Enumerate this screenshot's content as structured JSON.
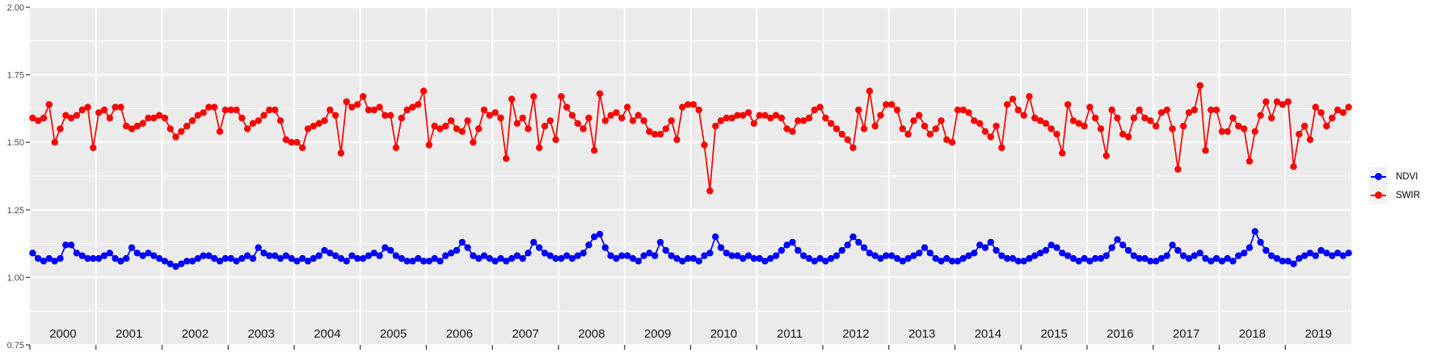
{
  "figure": {
    "background": "#FFFFFF",
    "panel_background": "#EBEBEB",
    "grid_color": "#FFFFFF",
    "tick_color": "#333333"
  },
  "legend": {
    "key_background": "#F2F2F2",
    "items": [
      {
        "label": "NDVI",
        "color": "#0000FF"
      },
      {
        "label": "SWIR",
        "color": "#FF0000"
      }
    ]
  },
  "chart_data": {
    "type": "line",
    "title": "",
    "xlabel": "",
    "ylabel": "",
    "legend_position": "right",
    "grid": "horizontal major+minor, vertical major at year boundaries",
    "x_range_years": [
      2000,
      2020
    ],
    "y_range": [
      0.75,
      2.0
    ],
    "y_major_ticks": [
      0.75,
      1.0,
      1.25,
      1.5,
      1.75,
      2.0
    ],
    "y_tick_labels": [
      "0.75",
      "1.00",
      "1.25",
      "1.50",
      "1.75",
      "2.00"
    ],
    "y_minor_ticks": [
      0.875,
      1.125,
      1.375,
      1.625,
      1.875
    ],
    "x_tick_years": [
      2000,
      2001,
      2002,
      2003,
      2004,
      2005,
      2006,
      2007,
      2008,
      2009,
      2010,
      2011,
      2012,
      2013,
      2014,
      2015,
      2016,
      2017,
      2018,
      2019
    ],
    "points_per_year": 12,
    "series": [
      {
        "name": "NDVI",
        "color": "#0000FF",
        "monthly_values_by_year": {
          "2000": [
            1.09,
            1.07,
            1.06,
            1.07,
            1.06,
            1.07,
            1.12,
            1.12,
            1.09,
            1.08,
            1.07,
            1.07
          ],
          "2001": [
            1.07,
            1.08,
            1.09,
            1.07,
            1.06,
            1.07,
            1.11,
            1.09,
            1.08,
            1.09,
            1.08,
            1.07
          ],
          "2002": [
            1.06,
            1.05,
            1.04,
            1.05,
            1.06,
            1.06,
            1.07,
            1.08,
            1.08,
            1.07,
            1.06,
            1.07
          ],
          "2003": [
            1.07,
            1.06,
            1.07,
            1.08,
            1.07,
            1.11,
            1.09,
            1.08,
            1.08,
            1.07,
            1.08,
            1.07
          ],
          "2004": [
            1.06,
            1.07,
            1.06,
            1.07,
            1.08,
            1.1,
            1.09,
            1.08,
            1.07,
            1.06,
            1.08,
            1.07
          ],
          "2005": [
            1.07,
            1.08,
            1.09,
            1.08,
            1.11,
            1.1,
            1.08,
            1.07,
            1.06,
            1.06,
            1.07,
            1.06
          ],
          "2006": [
            1.06,
            1.07,
            1.06,
            1.08,
            1.09,
            1.1,
            1.13,
            1.11,
            1.08,
            1.07,
            1.08,
            1.07
          ],
          "2007": [
            1.06,
            1.07,
            1.06,
            1.07,
            1.08,
            1.07,
            1.09,
            1.13,
            1.11,
            1.09,
            1.08,
            1.07
          ],
          "2008": [
            1.07,
            1.08,
            1.07,
            1.08,
            1.09,
            1.12,
            1.15,
            1.16,
            1.11,
            1.08,
            1.07,
            1.08
          ],
          "2009": [
            1.08,
            1.07,
            1.06,
            1.08,
            1.09,
            1.08,
            1.13,
            1.1,
            1.08,
            1.07,
            1.06,
            1.07
          ],
          "2010": [
            1.07,
            1.06,
            1.08,
            1.09,
            1.15,
            1.11,
            1.09,
            1.08,
            1.08,
            1.07,
            1.08,
            1.07
          ],
          "2011": [
            1.07,
            1.06,
            1.07,
            1.08,
            1.1,
            1.12,
            1.13,
            1.1,
            1.08,
            1.07,
            1.06,
            1.07
          ],
          "2012": [
            1.06,
            1.07,
            1.08,
            1.1,
            1.12,
            1.15,
            1.13,
            1.11,
            1.09,
            1.08,
            1.07,
            1.08
          ],
          "2013": [
            1.08,
            1.07,
            1.06,
            1.07,
            1.08,
            1.09,
            1.11,
            1.09,
            1.07,
            1.06,
            1.07,
            1.06
          ],
          "2014": [
            1.06,
            1.07,
            1.08,
            1.09,
            1.12,
            1.11,
            1.13,
            1.1,
            1.08,
            1.07,
            1.07,
            1.06
          ],
          "2015": [
            1.06,
            1.07,
            1.08,
            1.09,
            1.1,
            1.12,
            1.11,
            1.09,
            1.08,
            1.07,
            1.06,
            1.07
          ],
          "2016": [
            1.06,
            1.07,
            1.07,
            1.08,
            1.11,
            1.14,
            1.12,
            1.1,
            1.08,
            1.07,
            1.07,
            1.06
          ],
          "2017": [
            1.06,
            1.07,
            1.08,
            1.12,
            1.1,
            1.08,
            1.07,
            1.08,
            1.09,
            1.07,
            1.06,
            1.07
          ],
          "2018": [
            1.06,
            1.07,
            1.06,
            1.08,
            1.09,
            1.11,
            1.17,
            1.13,
            1.1,
            1.08,
            1.07,
            1.06
          ],
          "2019": [
            1.06,
            1.05,
            1.07,
            1.08,
            1.09,
            1.08,
            1.1,
            1.09,
            1.08,
            1.09,
            1.08,
            1.09
          ]
        }
      },
      {
        "name": "SWIR",
        "color": "#FF0000",
        "monthly_values_by_year": {
          "2000": [
            1.59,
            1.58,
            1.59,
            1.64,
            1.5,
            1.55,
            1.6,
            1.59,
            1.6,
            1.62,
            1.63,
            1.48
          ],
          "2001": [
            1.61,
            1.62,
            1.59,
            1.63,
            1.63,
            1.56,
            1.55,
            1.56,
            1.57,
            1.59,
            1.59,
            1.6
          ],
          "2002": [
            1.59,
            1.55,
            1.52,
            1.54,
            1.56,
            1.58,
            1.6,
            1.61,
            1.63,
            1.63,
            1.54,
            1.62
          ],
          "2003": [
            1.62,
            1.62,
            1.59,
            1.55,
            1.57,
            1.58,
            1.6,
            1.62,
            1.62,
            1.58,
            1.51,
            1.5
          ],
          "2004": [
            1.5,
            1.48,
            1.55,
            1.56,
            1.57,
            1.58,
            1.62,
            1.6,
            1.46,
            1.65,
            1.63,
            1.64
          ],
          "2005": [
            1.67,
            1.62,
            1.62,
            1.63,
            1.6,
            1.6,
            1.48,
            1.59,
            1.62,
            1.63,
            1.64,
            1.69
          ],
          "2006": [
            1.49,
            1.56,
            1.55,
            1.56,
            1.58,
            1.55,
            1.54,
            1.58,
            1.5,
            1.55,
            1.62,
            1.6
          ],
          "2007": [
            1.61,
            1.59,
            1.44,
            1.66,
            1.57,
            1.59,
            1.55,
            1.67,
            1.48,
            1.56,
            1.58,
            1.51
          ],
          "2008": [
            1.67,
            1.63,
            1.6,
            1.57,
            1.55,
            1.59,
            1.47,
            1.68,
            1.58,
            1.6,
            1.61,
            1.59
          ],
          "2009": [
            1.63,
            1.58,
            1.6,
            1.58,
            1.54,
            1.53,
            1.53,
            1.55,
            1.58,
            1.51,
            1.63,
            1.64
          ],
          "2010": [
            1.64,
            1.62,
            1.49,
            1.32,
            1.56,
            1.58,
            1.59,
            1.59,
            1.6,
            1.6,
            1.61,
            1.57
          ],
          "2011": [
            1.6,
            1.6,
            1.59,
            1.6,
            1.59,
            1.55,
            1.54,
            1.58,
            1.58,
            1.59,
            1.62,
            1.63
          ],
          "2012": [
            1.59,
            1.57,
            1.55,
            1.53,
            1.51,
            1.48,
            1.62,
            1.55,
            1.69,
            1.56,
            1.6,
            1.64
          ],
          "2013": [
            1.64,
            1.62,
            1.55,
            1.53,
            1.58,
            1.6,
            1.56,
            1.53,
            1.55,
            1.58,
            1.51,
            1.5
          ],
          "2014": [
            1.62,
            1.62,
            1.61,
            1.58,
            1.57,
            1.54,
            1.52,
            1.56,
            1.48,
            1.64,
            1.66,
            1.62
          ],
          "2015": [
            1.6,
            1.67,
            1.59,
            1.58,
            1.57,
            1.55,
            1.53,
            1.46,
            1.64,
            1.58,
            1.57,
            1.56
          ],
          "2016": [
            1.63,
            1.59,
            1.55,
            1.45,
            1.62,
            1.59,
            1.53,
            1.52,
            1.59,
            1.62,
            1.59,
            1.58
          ],
          "2017": [
            1.56,
            1.61,
            1.62,
            1.55,
            1.4,
            1.56,
            1.61,
            1.62,
            1.71,
            1.47,
            1.62,
            1.62
          ],
          "2018": [
            1.54,
            1.54,
            1.59,
            1.56,
            1.55,
            1.43,
            1.54,
            1.6,
            1.65,
            1.59,
            1.65,
            1.64
          ],
          "2019": [
            1.65,
            1.41,
            1.53,
            1.56,
            1.51,
            1.63,
            1.61,
            1.56,
            1.59,
            1.62,
            1.61,
            1.63
          ]
        }
      }
    ]
  }
}
